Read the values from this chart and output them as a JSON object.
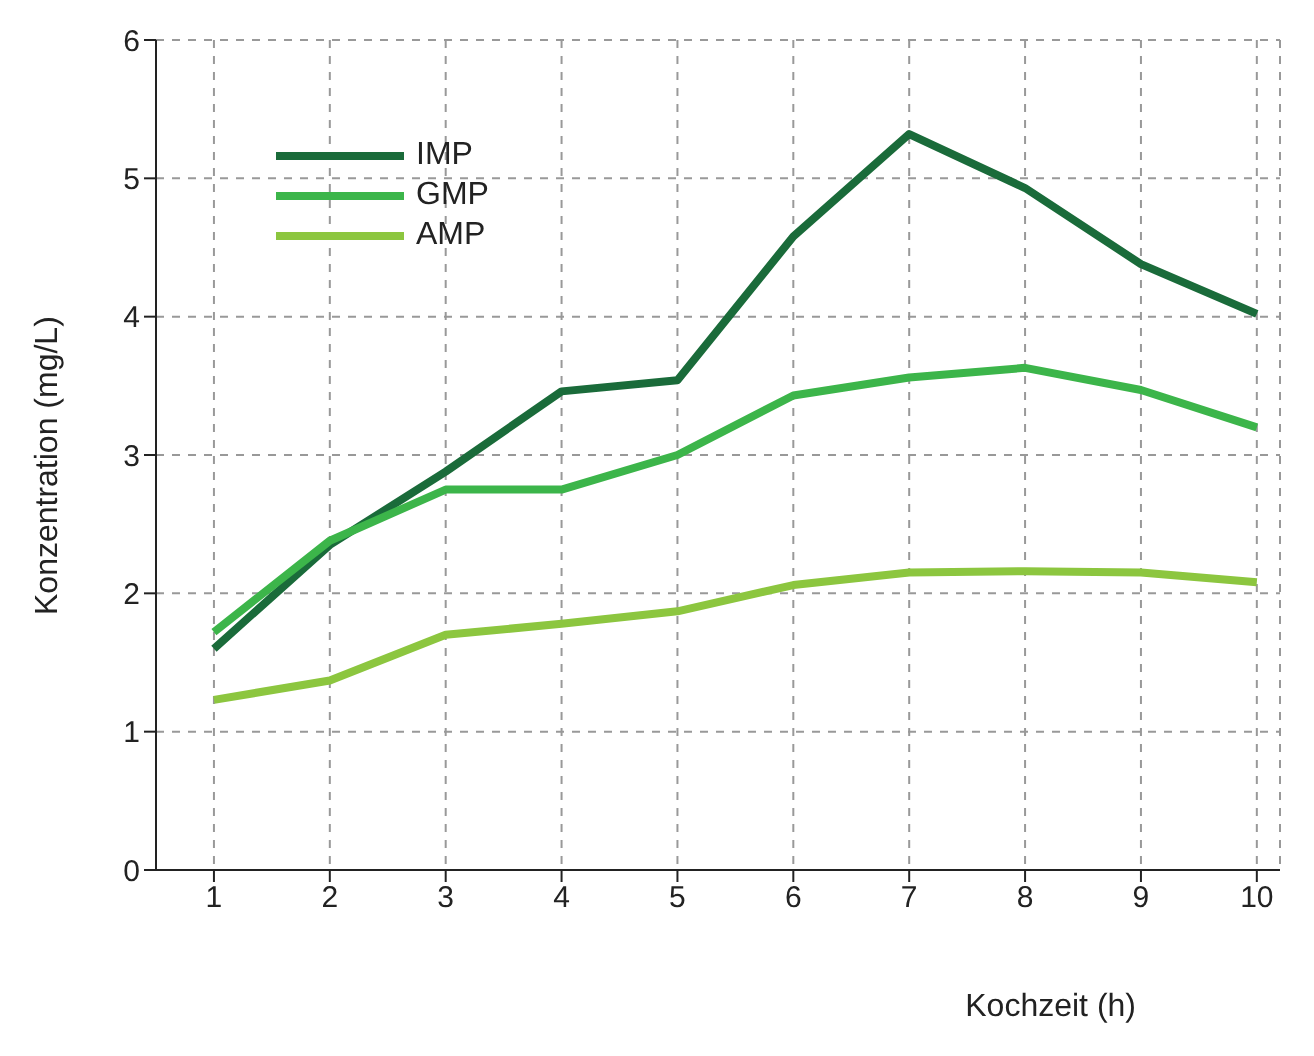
{
  "chart_data": {
    "type": "line",
    "xlabel": "Kochzeit (h)",
    "ylabel": "Konzentration (mg/L)",
    "x": [
      1,
      2,
      3,
      4,
      5,
      6,
      7,
      8,
      9,
      10
    ],
    "series": [
      {
        "name": "IMP",
        "color": "#1a6b3a",
        "values": [
          1.6,
          2.35,
          2.88,
          3.46,
          3.54,
          4.58,
          5.32,
          4.93,
          4.38,
          4.02
        ]
      },
      {
        "name": "GMP",
        "color": "#3cb54a",
        "values": [
          1.72,
          2.38,
          2.75,
          2.75,
          3.0,
          3.43,
          3.56,
          3.63,
          3.47,
          3.2
        ]
      },
      {
        "name": "AMP",
        "color": "#8cc63f",
        "values": [
          1.23,
          1.37,
          1.7,
          1.78,
          1.87,
          2.06,
          2.15,
          2.16,
          2.15,
          2.08
        ]
      }
    ],
    "xlim": [
      0.5,
      10.2
    ],
    "xticks": [
      1,
      2,
      3,
      4,
      5,
      6,
      7,
      8,
      9,
      10
    ],
    "ylim": [
      0,
      6
    ],
    "yticks": [
      0,
      1,
      2,
      3,
      4,
      5,
      6
    ],
    "grid": true,
    "legend": "top left"
  }
}
